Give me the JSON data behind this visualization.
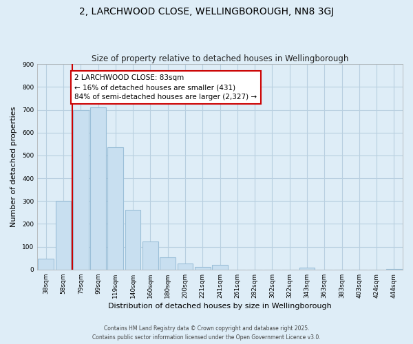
{
  "title": "2, LARCHWOOD CLOSE, WELLINGBOROUGH, NN8 3GJ",
  "subtitle": "Size of property relative to detached houses in Wellingborough",
  "xlabel": "Distribution of detached houses by size in Wellingborough",
  "ylabel": "Number of detached properties",
  "categories": [
    "38sqm",
    "58sqm",
    "79sqm",
    "99sqm",
    "119sqm",
    "140sqm",
    "160sqm",
    "180sqm",
    "200sqm",
    "221sqm",
    "241sqm",
    "261sqm",
    "282sqm",
    "302sqm",
    "322sqm",
    "343sqm",
    "363sqm",
    "383sqm",
    "403sqm",
    "424sqm",
    "444sqm"
  ],
  "values": [
    47,
    300,
    700,
    710,
    537,
    263,
    122,
    53,
    28,
    13,
    20,
    0,
    0,
    0,
    0,
    10,
    0,
    0,
    0,
    0,
    3
  ],
  "bar_color": "#c8dff0",
  "bar_edge_color": "#9bbfd8",
  "vline_x": 1.5,
  "vline_color": "#cc0000",
  "ylim": [
    0,
    900
  ],
  "yticks": [
    0,
    100,
    200,
    300,
    400,
    500,
    600,
    700,
    800,
    900
  ],
  "annotation_title": "2 LARCHWOOD CLOSE: 83sqm",
  "annotation_line1": "← 16% of detached houses are smaller (431)",
  "annotation_line2": "84% of semi-detached houses are larger (2,327) →",
  "annotation_box_color": "#ffffff",
  "annotation_box_edge": "#cc0000",
  "bg_color": "#deedf7",
  "plot_bg_color": "#deedf7",
  "grid_color": "#b8cfe0",
  "footer1": "Contains HM Land Registry data © Crown copyright and database right 2025.",
  "footer2": "Contains public sector information licensed under the Open Government Licence v3.0.",
  "title_fontsize": 10,
  "subtitle_fontsize": 8.5,
  "axis_label_fontsize": 8,
  "tick_fontsize": 6.5,
  "annotation_fontsize": 7.5
}
